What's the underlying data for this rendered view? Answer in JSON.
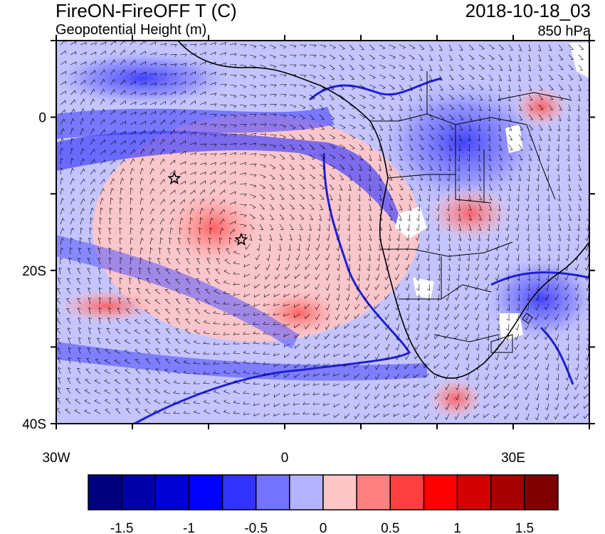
{
  "header": {
    "title": "FireON-FireOFF T (C)",
    "subtitle": "Geopotential Height (m)",
    "datetime": "2018-10-18_03",
    "level": "850 hPa"
  },
  "axes": {
    "lat_ticks": [
      {
        "value": 0,
        "label": "0"
      },
      {
        "value": -20,
        "label": "20S"
      },
      {
        "value": -40,
        "label": "40S"
      }
    ],
    "lon_ticks": [
      {
        "value": -30,
        "label": "30W"
      },
      {
        "value": 0,
        "label": "0"
      },
      {
        "value": 30,
        "label": "30E"
      }
    ],
    "lon_range": [
      -30,
      40
    ],
    "lat_range": [
      -40,
      10
    ]
  },
  "markers": [
    {
      "name": "star-marker-1",
      "lon": -14.5,
      "lat": -8.0
    },
    {
      "name": "star-marker-2",
      "lon": -5.7,
      "lat": -16.0
    }
  ],
  "colorbar": {
    "colors": [
      "#00007f",
      "#0000a8",
      "#0000d2",
      "#0000ff",
      "#3333ff",
      "#7373ff",
      "#b3b3ff",
      "#ffc6c6",
      "#ff8080",
      "#ff4040",
      "#ff0000",
      "#d20000",
      "#a80000",
      "#7f0000"
    ],
    "labels": [
      "-1.5",
      "-1",
      "-0.5",
      "0",
      "0.5",
      "1",
      "1.5"
    ]
  }
}
